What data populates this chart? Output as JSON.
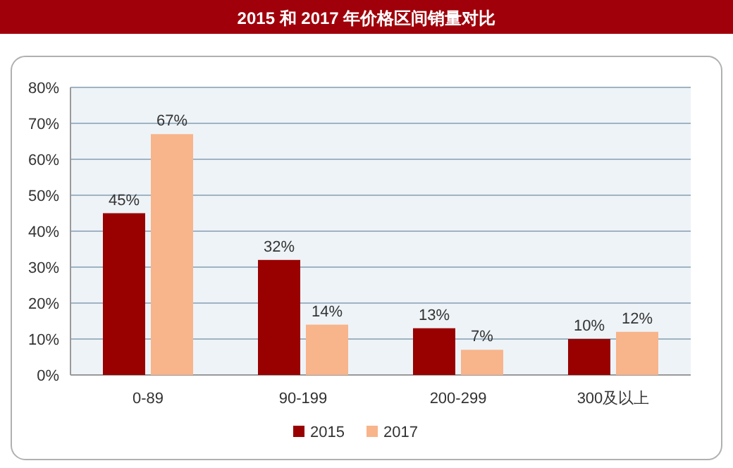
{
  "chart_data": {
    "type": "bar",
    "title": "2015 和 2017 年价格区间销量对比",
    "categories": [
      "0-89",
      "90-199",
      "200-299",
      "300及以上"
    ],
    "series": [
      {
        "name": "2015",
        "color": "#990000",
        "values": [
          45,
          32,
          13,
          10
        ],
        "value_labels": [
          "45%",
          "32%",
          "13%",
          "10%"
        ]
      },
      {
        "name": "2017",
        "color": "#f8b48a",
        "values": [
          67,
          14,
          7,
          12
        ],
        "value_labels": [
          "67%",
          "14%",
          "7%",
          "12%"
        ]
      }
    ],
    "ylim": [
      0,
      80
    ],
    "yticks": [
      {
        "value": 0,
        "label": "0%"
      },
      {
        "value": 10,
        "label": "10%"
      },
      {
        "value": 20,
        "label": "20%"
      },
      {
        "value": 30,
        "label": "30%"
      },
      {
        "value": 40,
        "label": "40%"
      },
      {
        "value": 50,
        "label": "50%"
      },
      {
        "value": 60,
        "label": "60%"
      },
      {
        "value": 70,
        "label": "70%"
      },
      {
        "value": 80,
        "label": "80%"
      }
    ],
    "grid": "y",
    "legend": "bottom"
  }
}
